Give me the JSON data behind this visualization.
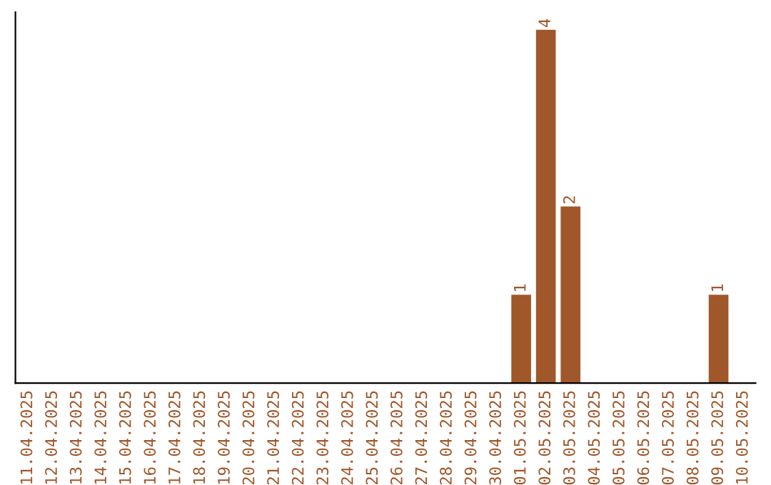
{
  "chart_data": {
    "type": "bar",
    "categories": [
      "11.04.2025",
      "12.04.2025",
      "13.04.2025",
      "14.04.2025",
      "15.04.2025",
      "16.04.2025",
      "17.04.2025",
      "18.04.2025",
      "19.04.2025",
      "20.04.2025",
      "21.04.2025",
      "22.04.2025",
      "23.04.2025",
      "24.04.2025",
      "25.04.2025",
      "26.04.2025",
      "27.04.2025",
      "28.04.2025",
      "29.04.2025",
      "30.04.2025",
      "01.05.2025",
      "02.05.2025",
      "03.05.2025",
      "04.05.2025",
      "05.05.2025",
      "06.05.2025",
      "07.05.2025",
      "08.05.2025",
      "09.05.2025",
      "10.05.2025"
    ],
    "values": [
      null,
      null,
      null,
      null,
      null,
      null,
      null,
      null,
      null,
      null,
      null,
      null,
      null,
      null,
      null,
      null,
      null,
      null,
      null,
      null,
      1,
      4,
      2,
      null,
      null,
      null,
      null,
      null,
      1,
      null
    ],
    "value_labels": [
      null,
      null,
      null,
      null,
      null,
      null,
      null,
      null,
      null,
      null,
      null,
      null,
      null,
      null,
      null,
      null,
      null,
      null,
      null,
      null,
      "1",
      "4",
      "2",
      null,
      null,
      null,
      null,
      null,
      "1",
      null
    ],
    "color": "#a0572a",
    "tick_labels": "x",
    "grid": false,
    "legend": false
  }
}
